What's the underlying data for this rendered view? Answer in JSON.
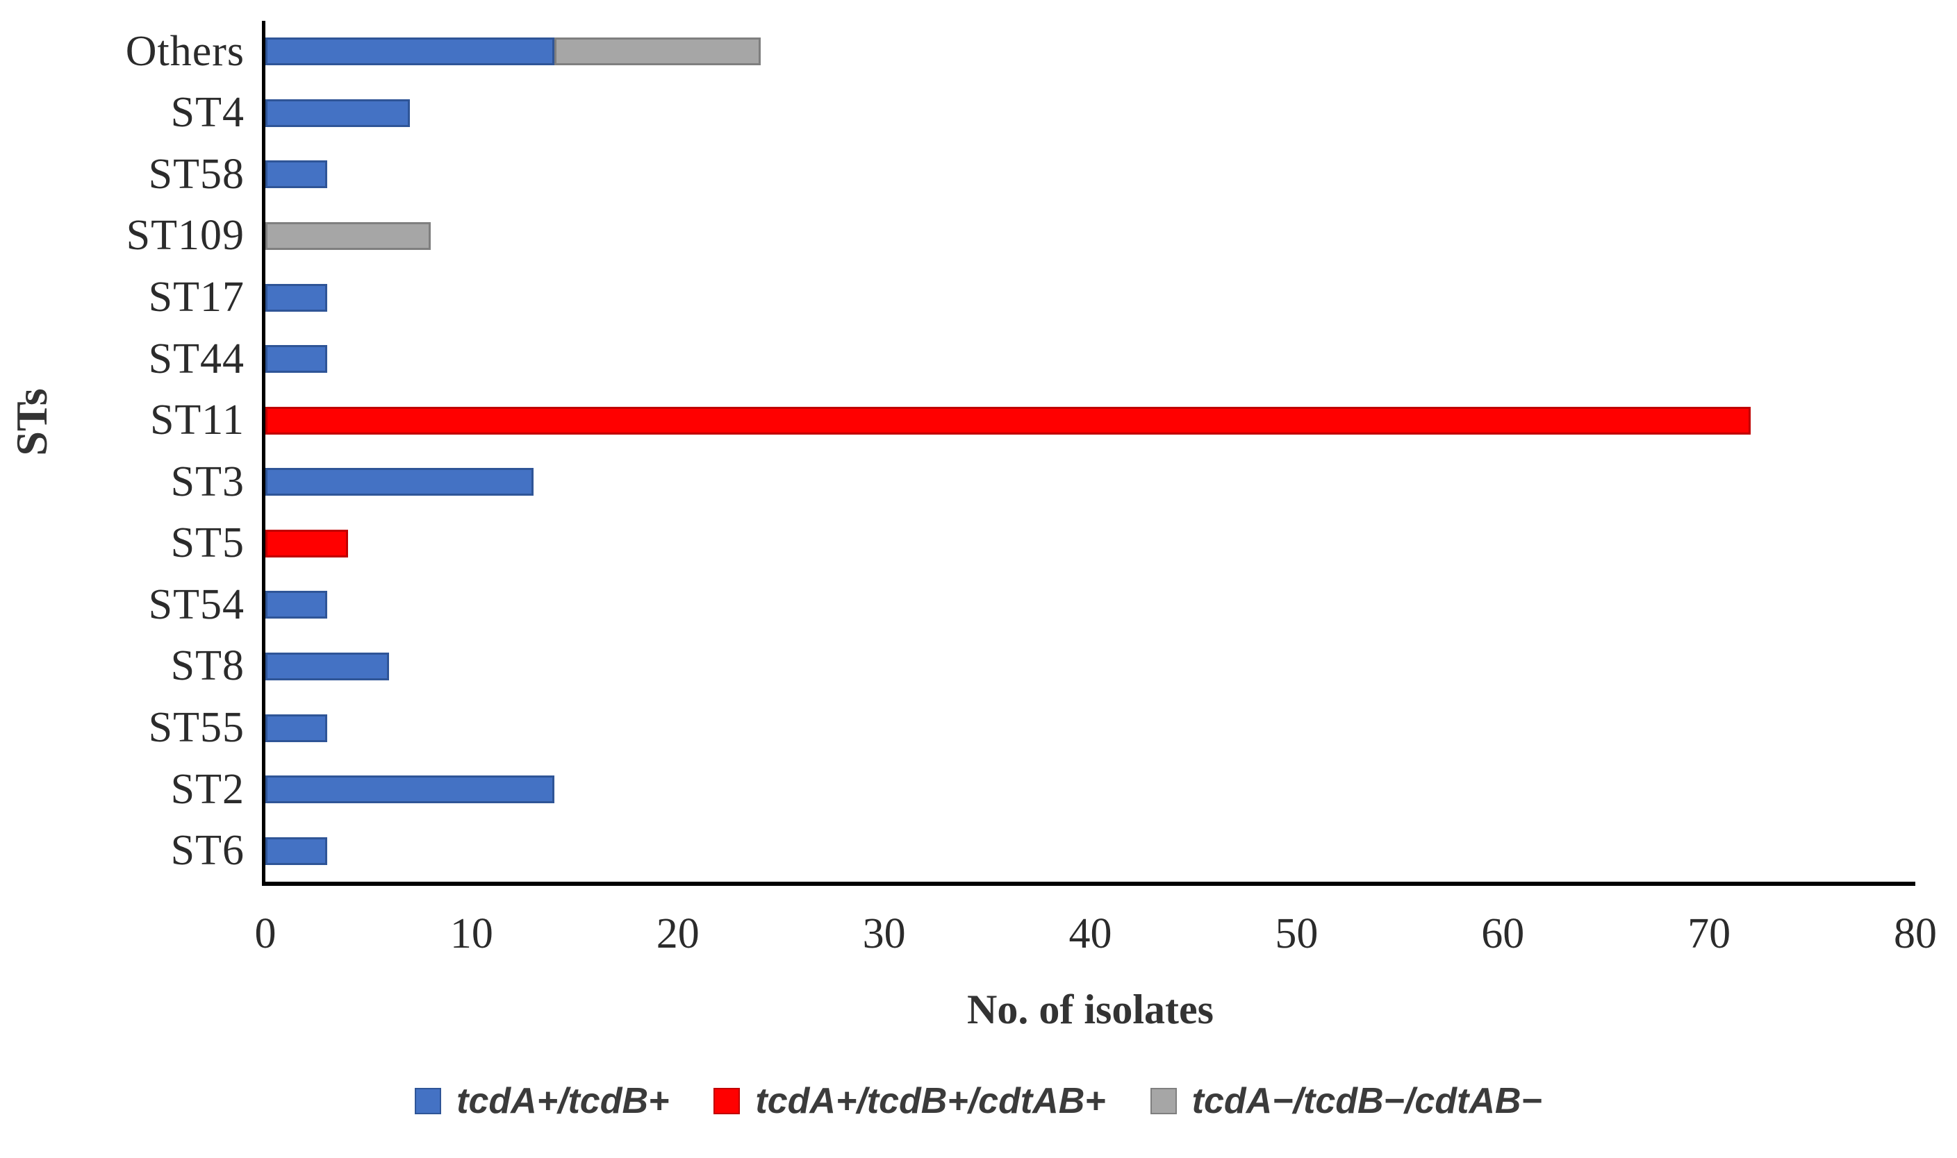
{
  "figure": {
    "background": "#ffffff",
    "axis_color": "#000000",
    "text_color": "#262626"
  },
  "chart_data": {
    "type": "bar",
    "orientation": "horizontal",
    "title": "",
    "xlabel": "No. of isolates",
    "ylabel": "STs",
    "xlim": [
      0,
      80
    ],
    "xticks": [
      0,
      10,
      20,
      30,
      40,
      50,
      60,
      70,
      80
    ],
    "grid": false,
    "legend_position": "bottom",
    "categories": [
      "Others",
      "ST4",
      "ST58",
      "ST109",
      "ST17",
      "ST44",
      "ST11",
      "ST3",
      "ST5",
      "ST54",
      "ST8",
      "ST55",
      "ST2",
      "ST6"
    ],
    "series": [
      {
        "name": "tcdA+/tcdB+",
        "color": "#4472C4",
        "border_color": "#2F5597",
        "values": [
          14,
          7,
          3,
          0,
          3,
          3,
          0,
          13,
          0,
          3,
          6,
          3,
          14,
          3
        ]
      },
      {
        "name": "tcdA+/tcdB+/cdtAB+",
        "color": "#FF0000",
        "border_color": "#C00000",
        "values": [
          0,
          0,
          0,
          0,
          0,
          0,
          72,
          0,
          4,
          0,
          0,
          0,
          0,
          0
        ]
      },
      {
        "name": "tcdA−/tcdB−/cdtAB−",
        "color": "#A6A6A6",
        "border_color": "#7F7F7F",
        "values": [
          10,
          0,
          0,
          8,
          0,
          0,
          0,
          0,
          0,
          0,
          0,
          0,
          0,
          0
        ]
      }
    ]
  }
}
